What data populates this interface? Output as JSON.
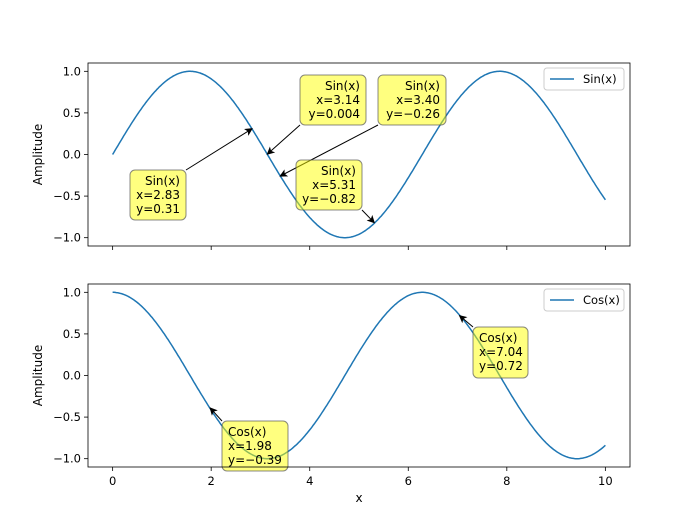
{
  "chart_data": [
    {
      "type": "line",
      "ylabel": "Amplitude",
      "xlabel": "",
      "xlim": [
        -0.5,
        10.5
      ],
      "ylim": [
        -1.1,
        1.1
      ],
      "xticks": [
        "0",
        "2",
        "4",
        "6",
        "8",
        "10"
      ],
      "xticks_visible": false,
      "yticks": [
        "1.0",
        "0.5",
        "0.0",
        "−0.5",
        "−1.0"
      ],
      "grid": false,
      "legend_position": "top-right",
      "series": [
        {
          "name": "Sin(x)",
          "function": "sin",
          "x_range": [
            0,
            10
          ],
          "color": "#1f77b4"
        }
      ],
      "annotations": [
        {
          "label": "Sin(x)",
          "x": 2.83,
          "y": 0.31,
          "x_text": "x=2.83",
          "y_text": "y=0.31"
        },
        {
          "label": "Sin(x)",
          "x": 3.14,
          "y": 0.004,
          "x_text": "x=3.14",
          "y_text": "y=0.004"
        },
        {
          "label": "Sin(x)",
          "x": 3.4,
          "y": -0.26,
          "x_text": "x=3.40",
          "y_text": "y=−0.26"
        },
        {
          "label": "Sin(x)",
          "x": 5.31,
          "y": -0.82,
          "x_text": "x=5.31",
          "y_text": "y=−0.82"
        }
      ]
    },
    {
      "type": "line",
      "ylabel": "Amplitude",
      "xlabel": "x",
      "xlim": [
        -0.5,
        10.5
      ],
      "ylim": [
        -1.1,
        1.1
      ],
      "xticks": [
        "0",
        "2",
        "4",
        "6",
        "8",
        "10"
      ],
      "yticks": [
        "1.0",
        "0.5",
        "0.0",
        "−0.5",
        "−1.0"
      ],
      "grid": false,
      "legend_position": "top-right",
      "series": [
        {
          "name": "Cos(x)",
          "function": "cos",
          "x_range": [
            0,
            10
          ],
          "color": "#1f77b4"
        }
      ],
      "annotations": [
        {
          "label": "Cos(x)",
          "x": 1.98,
          "y": -0.39,
          "x_text": "x=1.98",
          "y_text": "y=−0.39"
        },
        {
          "label": "Cos(x)",
          "x": 7.04,
          "y": 0.72,
          "x_text": "x=7.04",
          "y_text": "y=0.72"
        }
      ]
    }
  ]
}
